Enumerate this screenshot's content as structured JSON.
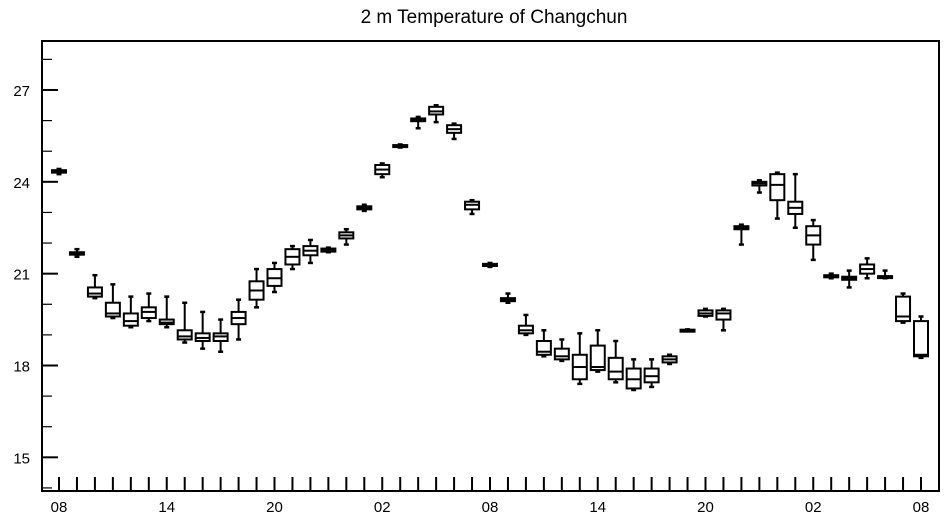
{
  "chart_data": {
    "type": "box",
    "title": "2 m Temperature of Changchun",
    "xlabel": "",
    "ylabel": "",
    "ylim": [
      13.9,
      28.6
    ],
    "y_ticks": [
      15,
      18,
      21,
      24,
      27
    ],
    "x_tick_labels": [
      "08",
      "14",
      "20",
      "02",
      "08",
      "14",
      "20",
      "02",
      "08"
    ],
    "x_tick_positions": [
      0,
      6,
      12,
      18,
      24,
      30,
      36,
      42,
      48
    ],
    "x_range": [
      -1,
      49
    ],
    "series": [
      {
        "x": 0,
        "whisker_low": 24.25,
        "q1": 24.3,
        "median": 24.33,
        "q3": 24.38,
        "whisker_high": 24.42
      },
      {
        "x": 1,
        "whisker_low": 21.55,
        "q1": 21.62,
        "median": 21.65,
        "q3": 21.7,
        "whisker_high": 21.8
      },
      {
        "x": 2,
        "whisker_low": 20.2,
        "q1": 20.25,
        "median": 20.35,
        "q3": 20.55,
        "whisker_high": 20.95
      },
      {
        "x": 3,
        "whisker_low": 19.55,
        "q1": 19.6,
        "median": 19.7,
        "q3": 20.05,
        "whisker_high": 20.65
      },
      {
        "x": 4,
        "whisker_low": 19.25,
        "q1": 19.3,
        "median": 19.45,
        "q3": 19.7,
        "whisker_high": 20.25
      },
      {
        "x": 5,
        "whisker_low": 19.45,
        "q1": 19.55,
        "median": 19.75,
        "q3": 19.9,
        "whisker_high": 20.35
      },
      {
        "x": 6,
        "whisker_low": 19.25,
        "q1": 19.35,
        "median": 19.4,
        "q3": 19.5,
        "whisker_high": 20.25
      },
      {
        "x": 7,
        "whisker_low": 18.75,
        "q1": 18.85,
        "median": 18.95,
        "q3": 19.15,
        "whisker_high": 20.05
      },
      {
        "x": 8,
        "whisker_low": 18.55,
        "q1": 18.8,
        "median": 18.9,
        "q3": 19.05,
        "whisker_high": 19.75
      },
      {
        "x": 9,
        "whisker_low": 18.45,
        "q1": 18.8,
        "median": 18.95,
        "q3": 19.05,
        "whisker_high": 19.5
      },
      {
        "x": 10,
        "whisker_low": 18.85,
        "q1": 19.35,
        "median": 19.55,
        "q3": 19.75,
        "whisker_high": 20.15
      },
      {
        "x": 11,
        "whisker_low": 19.9,
        "q1": 20.15,
        "median": 20.45,
        "q3": 20.75,
        "whisker_high": 21.15
      },
      {
        "x": 12,
        "whisker_low": 20.4,
        "q1": 20.6,
        "median": 20.85,
        "q3": 21.15,
        "whisker_high": 21.35
      },
      {
        "x": 13,
        "whisker_low": 21.15,
        "q1": 21.3,
        "median": 21.55,
        "q3": 21.8,
        "whisker_high": 21.9
      },
      {
        "x": 14,
        "whisker_low": 21.35,
        "q1": 21.6,
        "median": 21.75,
        "q3": 21.9,
        "whisker_high": 22.1
      },
      {
        "x": 15,
        "whisker_low": 21.7,
        "q1": 21.72,
        "median": 21.78,
        "q3": 21.82,
        "whisker_high": 21.85
      },
      {
        "x": 16,
        "whisker_low": 21.95,
        "q1": 22.15,
        "median": 22.25,
        "q3": 22.35,
        "whisker_high": 22.45
      },
      {
        "x": 17,
        "whisker_low": 23.05,
        "q1": 23.1,
        "median": 23.15,
        "q3": 23.2,
        "whisker_high": 23.25
      },
      {
        "x": 18,
        "whisker_low": 24.15,
        "q1": 24.25,
        "median": 24.4,
        "q3": 24.55,
        "whisker_high": 24.6
      },
      {
        "x": 19,
        "whisker_low": 25.12,
        "q1": 25.14,
        "median": 25.17,
        "q3": 25.2,
        "whisker_high": 25.22
      },
      {
        "x": 20,
        "whisker_low": 25.75,
        "q1": 25.98,
        "median": 26.02,
        "q3": 26.07,
        "whisker_high": 26.12
      },
      {
        "x": 21,
        "whisker_low": 25.95,
        "q1": 26.2,
        "median": 26.3,
        "q3": 26.45,
        "whisker_high": 26.5
      },
      {
        "x": 22,
        "whisker_low": 25.4,
        "q1": 25.6,
        "median": 25.72,
        "q3": 25.85,
        "whisker_high": 25.9
      },
      {
        "x": 23,
        "whisker_low": 22.95,
        "q1": 23.1,
        "median": 23.25,
        "q3": 23.35,
        "whisker_high": 23.4
      },
      {
        "x": 24,
        "whisker_low": 21.22,
        "q1": 21.25,
        "median": 21.28,
        "q3": 21.32,
        "whisker_high": 21.35
      },
      {
        "x": 25,
        "whisker_low": 20.05,
        "q1": 20.1,
        "median": 20.15,
        "q3": 20.2,
        "whisker_high": 20.35
      },
      {
        "x": 26,
        "whisker_low": 19.0,
        "q1": 19.05,
        "median": 19.15,
        "q3": 19.3,
        "whisker_high": 19.65
      },
      {
        "x": 27,
        "whisker_low": 18.3,
        "q1": 18.35,
        "median": 18.45,
        "q3": 18.8,
        "whisker_high": 19.15
      },
      {
        "x": 28,
        "whisker_low": 18.15,
        "q1": 18.2,
        "median": 18.3,
        "q3": 18.55,
        "whisker_high": 18.85
      },
      {
        "x": 29,
        "whisker_low": 17.4,
        "q1": 17.55,
        "median": 17.95,
        "q3": 18.35,
        "whisker_high": 19.05
      },
      {
        "x": 30,
        "whisker_low": 17.8,
        "q1": 17.85,
        "median": 17.95,
        "q3": 18.65,
        "whisker_high": 19.15
      },
      {
        "x": 31,
        "whisker_low": 17.45,
        "q1": 17.55,
        "median": 17.8,
        "q3": 18.25,
        "whisker_high": 18.8
      },
      {
        "x": 32,
        "whisker_low": 17.2,
        "q1": 17.25,
        "median": 17.55,
        "q3": 17.9,
        "whisker_high": 18.2
      },
      {
        "x": 33,
        "whisker_low": 17.3,
        "q1": 17.45,
        "median": 17.65,
        "q3": 17.9,
        "whisker_high": 18.2
      },
      {
        "x": 34,
        "whisker_low": 18.05,
        "q1": 18.1,
        "median": 18.2,
        "q3": 18.3,
        "whisker_high": 18.35
      },
      {
        "x": 35,
        "whisker_low": 19.12,
        "q1": 19.13,
        "median": 19.15,
        "q3": 19.17,
        "whisker_high": 19.18
      },
      {
        "x": 36,
        "whisker_low": 19.6,
        "q1": 19.62,
        "median": 19.7,
        "q3": 19.8,
        "whisker_high": 19.85
      },
      {
        "x": 37,
        "whisker_low": 19.15,
        "q1": 19.5,
        "median": 19.7,
        "q3": 19.8,
        "whisker_high": 19.85
      },
      {
        "x": 38,
        "whisker_low": 21.95,
        "q1": 22.45,
        "median": 22.5,
        "q3": 22.55,
        "whisker_high": 22.6
      },
      {
        "x": 39,
        "whisker_low": 23.65,
        "q1": 23.88,
        "median": 23.95,
        "q3": 24.0,
        "whisker_high": 24.05
      },
      {
        "x": 40,
        "whisker_low": 22.8,
        "q1": 23.4,
        "median": 23.9,
        "q3": 24.25,
        "whisker_high": 24.3
      },
      {
        "x": 41,
        "whisker_low": 22.5,
        "q1": 22.95,
        "median": 23.15,
        "q3": 23.35,
        "whisker_high": 24.25
      },
      {
        "x": 42,
        "whisker_low": 21.45,
        "q1": 21.95,
        "median": 22.25,
        "q3": 22.55,
        "whisker_high": 22.75
      },
      {
        "x": 43,
        "whisker_low": 20.85,
        "q1": 20.88,
        "median": 20.92,
        "q3": 20.95,
        "whisker_high": 21.0
      },
      {
        "x": 44,
        "whisker_low": 20.55,
        "q1": 20.8,
        "median": 20.85,
        "q3": 20.9,
        "whisker_high": 21.1
      },
      {
        "x": 45,
        "whisker_low": 20.85,
        "q1": 21.0,
        "median": 21.15,
        "q3": 21.3,
        "whisker_high": 21.5
      },
      {
        "x": 46,
        "whisker_low": 20.85,
        "q1": 20.88,
        "median": 20.9,
        "q3": 20.92,
        "whisker_high": 21.1
      },
      {
        "x": 47,
        "whisker_low": 19.4,
        "q1": 19.45,
        "median": 19.6,
        "q3": 20.25,
        "whisker_high": 20.35
      },
      {
        "x": 48,
        "whisker_low": 18.25,
        "q1": 18.3,
        "median": 18.35,
        "q3": 19.45,
        "whisker_high": 19.6
      }
    ]
  }
}
